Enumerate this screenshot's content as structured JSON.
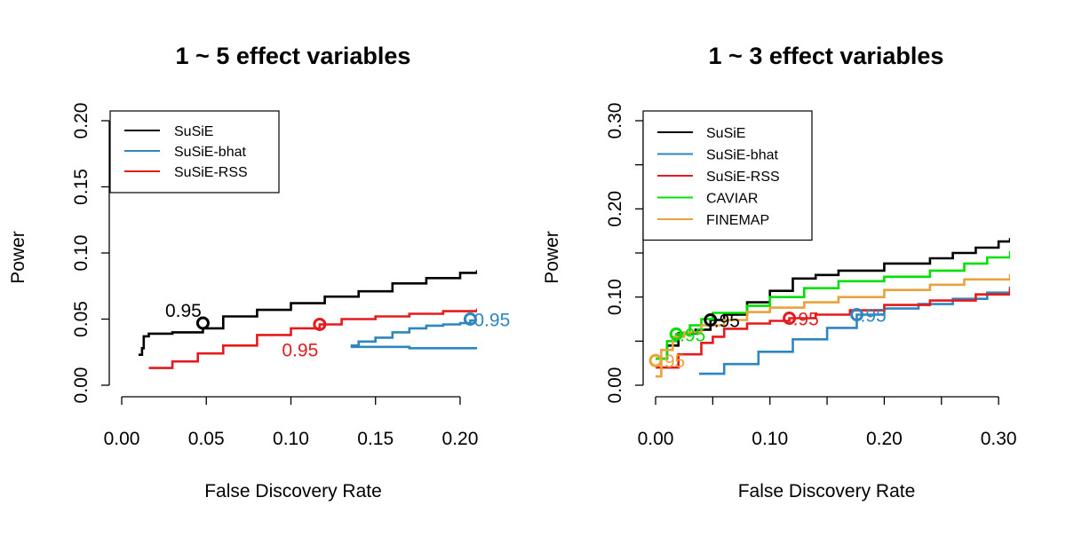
{
  "chart_data": [
    {
      "type": "line",
      "title": "1 ~ 5 effect variables",
      "xlabel": "False Discovery Rate",
      "ylabel": "Power",
      "xlim": [
        0,
        0.21
      ],
      "ylim": [
        0,
        0.2
      ],
      "xticks": [
        "0.00",
        "0.05",
        "0.10",
        "0.15",
        "0.20"
      ],
      "yticks": [
        "0.00",
        "0.05",
        "0.10",
        "0.15",
        "0.20"
      ],
      "grid": false,
      "legend": {
        "position": "top-left",
        "entries": [
          "SuSiE",
          "SuSiE-bhat",
          "SuSiE-RSS"
        ]
      },
      "series": [
        {
          "name": "SuSiE",
          "color": "#000000",
          "step": true,
          "x": [
            0.01,
            0.012,
            0.013,
            0.016,
            0.03,
            0.048,
            0.06,
            0.08,
            0.1,
            0.12,
            0.14,
            0.16,
            0.18,
            0.2,
            0.21
          ],
          "y": [
            0.023,
            0.028,
            0.037,
            0.039,
            0.04,
            0.043,
            0.052,
            0.057,
            0.062,
            0.067,
            0.071,
            0.077,
            0.081,
            0.085,
            0.087
          ]
        },
        {
          "name": "SuSiE-bhat",
          "color": "#2e86c1",
          "step": true,
          "x": [
            0.21,
            0.17,
            0.136,
            0.14,
            0.15,
            0.16,
            0.17,
            0.18,
            0.19,
            0.2,
            0.206,
            0.21
          ],
          "y": [
            0.028,
            0.029,
            0.03,
            0.033,
            0.036,
            0.04,
            0.043,
            0.045,
            0.046,
            0.047,
            0.049,
            0.05
          ]
        },
        {
          "name": "SuSiE-RSS",
          "color": "#e41a1c",
          "step": true,
          "x": [
            0.016,
            0.03,
            0.045,
            0.06,
            0.08,
            0.1,
            0.117,
            0.13,
            0.15,
            0.17,
            0.19,
            0.21
          ],
          "y": [
            0.013,
            0.018,
            0.024,
            0.03,
            0.038,
            0.043,
            0.046,
            0.05,
            0.052,
            0.054,
            0.056,
            0.058
          ]
        }
      ],
      "markers": [
        {
          "series": "SuSiE",
          "x": 0.048,
          "y": 0.047,
          "label": "0.95",
          "color": "#000000",
          "label_pos": "above-left"
        },
        {
          "series": "SuSiE-RSS",
          "x": 0.117,
          "y": 0.046,
          "label": "0.95",
          "color": "#e41a1c",
          "label_pos": "below-left"
        },
        {
          "series": "SuSiE-bhat",
          "x": 0.206,
          "y": 0.05,
          "label": "0.95",
          "color": "#2e86c1",
          "label_pos": "right"
        }
      ]
    },
    {
      "type": "line",
      "title": "1 ~ 3 effect variables",
      "xlabel": "False Discovery Rate",
      "ylabel": "Power",
      "xlim": [
        0,
        0.31
      ],
      "ylim": [
        0,
        0.3
      ],
      "xticks": [
        "0.00",
        "0.10",
        "0.20",
        "0.30"
      ],
      "yticks": [
        "0.00",
        "0.10",
        "0.20",
        "0.30"
      ],
      "grid": false,
      "legend": {
        "position": "top-left",
        "entries": [
          "SuSiE",
          "SuSiE-bhat",
          "SuSiE-RSS",
          "CAVIAR",
          "FINEMAP"
        ]
      },
      "series": [
        {
          "name": "SuSiE",
          "color": "#000000",
          "step": true,
          "x": [
            0.0,
            0.01,
            0.02,
            0.035,
            0.048,
            0.06,
            0.08,
            0.1,
            0.12,
            0.14,
            0.16,
            0.2,
            0.24,
            0.26,
            0.28,
            0.3,
            0.31
          ],
          "y": [
            0.03,
            0.045,
            0.059,
            0.063,
            0.074,
            0.08,
            0.094,
            0.107,
            0.121,
            0.125,
            0.13,
            0.138,
            0.144,
            0.15,
            0.156,
            0.163,
            0.167
          ]
        },
        {
          "name": "SuSiE-bhat",
          "color": "#2e86c1",
          "step": true,
          "x": [
            0.038,
            0.06,
            0.09,
            0.12,
            0.15,
            0.176,
            0.2,
            0.23,
            0.26,
            0.29,
            0.31
          ],
          "y": [
            0.013,
            0.024,
            0.038,
            0.052,
            0.065,
            0.08,
            0.087,
            0.092,
            0.098,
            0.105,
            0.112
          ]
        },
        {
          "name": "SuSiE-RSS",
          "color": "#e41a1c",
          "step": true,
          "x": [
            0.0,
            0.02,
            0.04,
            0.05,
            0.06,
            0.08,
            0.1,
            0.117,
            0.14,
            0.17,
            0.2,
            0.24,
            0.28,
            0.31
          ],
          "y": [
            0.02,
            0.035,
            0.048,
            0.055,
            0.064,
            0.07,
            0.073,
            0.076,
            0.08,
            0.085,
            0.091,
            0.096,
            0.103,
            0.11
          ]
        },
        {
          "name": "CAVIAR",
          "color": "#00e000",
          "step": true,
          "x": [
            0.0,
            0.01,
            0.018,
            0.03,
            0.04,
            0.05,
            0.08,
            0.1,
            0.13,
            0.16,
            0.2,
            0.24,
            0.27,
            0.29,
            0.31
          ],
          "y": [
            0.03,
            0.05,
            0.058,
            0.068,
            0.075,
            0.082,
            0.09,
            0.1,
            0.11,
            0.118,
            0.123,
            0.13,
            0.138,
            0.145,
            0.152
          ]
        },
        {
          "name": "FINEMAP",
          "color": "#e8a33c",
          "step": true,
          "x": [
            0.0,
            0.005,
            0.015,
            0.025,
            0.04,
            0.06,
            0.08,
            0.1,
            0.13,
            0.16,
            0.2,
            0.24,
            0.27,
            0.31
          ],
          "y": [
            0.01,
            0.04,
            0.055,
            0.06,
            0.068,
            0.074,
            0.083,
            0.088,
            0.094,
            0.1,
            0.108,
            0.114,
            0.12,
            0.126
          ]
        }
      ],
      "markers": [
        {
          "series": "SuSiE",
          "x": 0.048,
          "y": 0.074,
          "label": ".95",
          "color": "#000000",
          "label_pos": "right"
        },
        {
          "series": "SuSiE-bhat",
          "x": 0.176,
          "y": 0.08,
          "label": ".95",
          "color": "#2e86c1",
          "label_pos": "right"
        },
        {
          "series": "SuSiE-RSS",
          "x": 0.117,
          "y": 0.076,
          "label": ".95",
          "color": "#e41a1c",
          "label_pos": "right"
        },
        {
          "series": "CAVIAR",
          "x": 0.018,
          "y": 0.058,
          "label": ".95",
          "color": "#00e000",
          "label_pos": "right"
        },
        {
          "series": "FINEMAP",
          "x": 0.0,
          "y": 0.028,
          "label": ".95",
          "color": "#e8a33c",
          "label_pos": "right"
        }
      ]
    }
  ]
}
